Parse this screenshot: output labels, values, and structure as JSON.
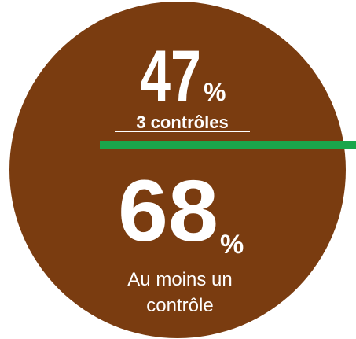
{
  "stats": [
    {
      "value": "47",
      "unit": "%",
      "label": [
        "3 contrôles"
      ]
    },
    {
      "value": "68",
      "unit": "%",
      "label": [
        "Au moins un",
        "contrôle"
      ]
    }
  ]
}
